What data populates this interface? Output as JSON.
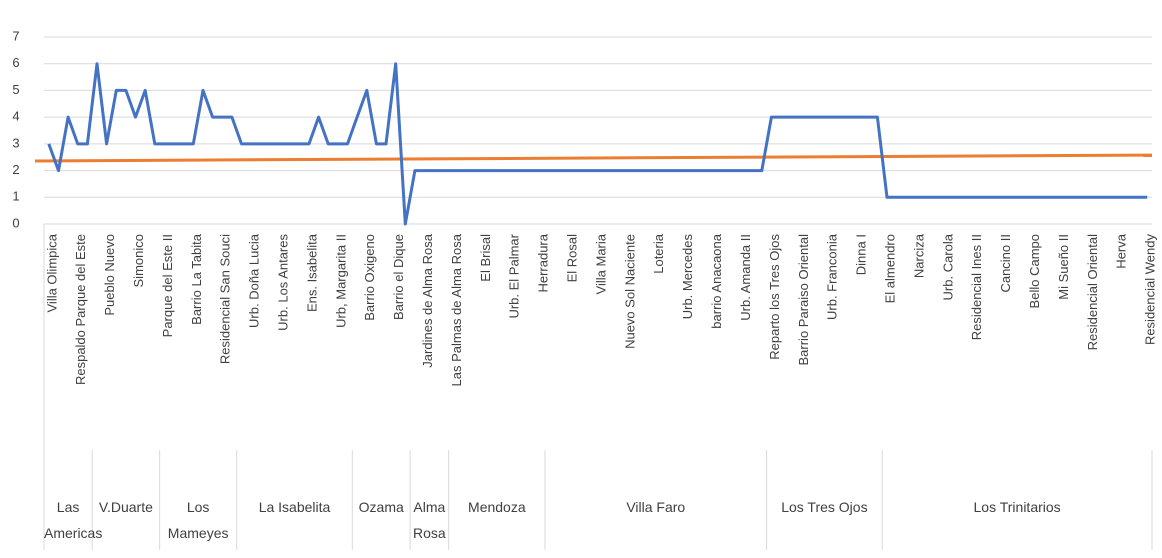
{
  "chart_data": {
    "type": "line",
    "categories": [
      "Villa Olimpica",
      null,
      null,
      "Respaldo Parque del Este",
      null,
      null,
      "Pueblo Nuevo",
      null,
      null,
      "Simonico",
      null,
      null,
      "Parque del Este II",
      null,
      null,
      "Barrio La Tabita",
      null,
      null,
      "Residencial San Souci",
      null,
      null,
      "Urb. Doña Lucia",
      null,
      null,
      "Urb. Los Antares",
      null,
      null,
      "Ens. Isabelita",
      null,
      null,
      "Urb, Margarita II",
      null,
      null,
      "Barrio Oxigeno",
      null,
      null,
      "Barrio el Dique",
      null,
      null,
      "Jardines de Alma Rosa",
      null,
      null,
      "Las Palmas de Alma Rosa",
      null,
      null,
      "El Brisal",
      null,
      null,
      "Urb. El Palmar",
      null,
      null,
      "Herradura",
      null,
      null,
      "El Rosal",
      null,
      null,
      "Villa Maria",
      null,
      null,
      "Nuevo Sol Naciente",
      null,
      null,
      "Loteria",
      null,
      null,
      "Urb. Mercedes",
      null,
      null,
      "barrio Anacaona",
      null,
      null,
      "Urb. Amanda II",
      null,
      null,
      "Reparto los Tres Ojos",
      null,
      null,
      "Barrio Paraiso Oriental",
      null,
      null,
      "Urb. Franconia",
      null,
      null,
      "Dinna I",
      null,
      null,
      "El almendro",
      null,
      null,
      "Narciza",
      null,
      null,
      "Urb. Carola",
      null,
      null,
      "Residencial Ines II",
      null,
      null,
      "Cancino II",
      null,
      null,
      "Bello Campo",
      null,
      null,
      "Mi Sueño II",
      null,
      null,
      "Residencial Oriental",
      null,
      null,
      "Herva",
      null,
      null,
      "Residencial Wendy"
    ],
    "groups": [
      {
        "label": "Las Americas",
        "count": 5
      },
      {
        "label": "V.Duarte",
        "count": 7
      },
      {
        "label": "Los Mameyes",
        "count": 8
      },
      {
        "label": "La Isabelita",
        "count": 12
      },
      {
        "label": "Ozama",
        "count": 6
      },
      {
        "label": "Alma Rosa",
        "count": 4
      },
      {
        "label": "Mendoza",
        "count": 10
      },
      {
        "label": "Villa Faro",
        "count": 23
      },
      {
        "label": "Los Tres Ojos",
        "count": 12
      },
      {
        "label": "Los Trinitarios",
        "count": 28
      }
    ],
    "series": [
      {
        "color": "#4472c4",
        "values": [
          3,
          2,
          4,
          3,
          3,
          6,
          3,
          5,
          5,
          4,
          5,
          3,
          3,
          3,
          3,
          3,
          5,
          4,
          4,
          4,
          3,
          3,
          3,
          3,
          3,
          3,
          3,
          3,
          4,
          3,
          3,
          3,
          4,
          5,
          3,
          3,
          6,
          0,
          2,
          2,
          2,
          2,
          2,
          2,
          2,
          2,
          2,
          2,
          2,
          2,
          2,
          2,
          2,
          2,
          2,
          2,
          2,
          2,
          2,
          2,
          2,
          2,
          2,
          2,
          2,
          2,
          2,
          2,
          2,
          2,
          2,
          2,
          2,
          2,
          2,
          4,
          4,
          4,
          4,
          4,
          4,
          4,
          4,
          4,
          4,
          4,
          4,
          1,
          1,
          1,
          1,
          1,
          1,
          1,
          1,
          1,
          1,
          1,
          1,
          1,
          1,
          1,
          1,
          1,
          1,
          1,
          1,
          1,
          1,
          1,
          1,
          1,
          1,
          1,
          1
        ]
      }
    ],
    "trend": {
      "color": "#ed7d31",
      "values": [
        2.36,
        2.58
      ]
    },
    "ylim": [
      0,
      7
    ],
    "yticks": [
      0,
      1,
      2,
      3,
      4,
      5,
      6,
      7
    ],
    "grid": true
  }
}
